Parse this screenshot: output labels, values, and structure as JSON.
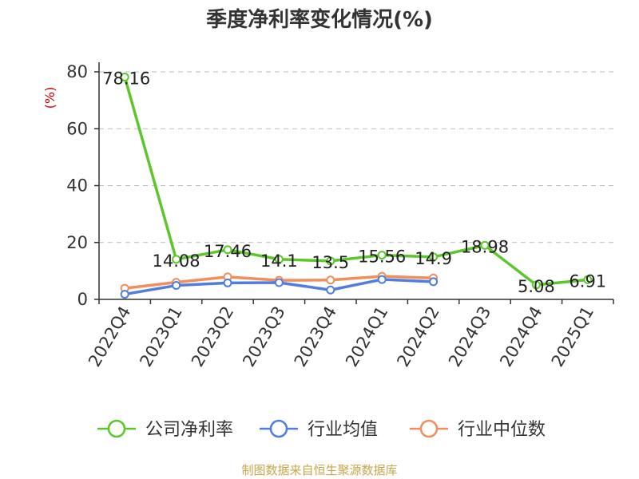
{
  "title": "季度净利率变化情况(%)",
  "source": "制图数据来自恒生聚源数据库",
  "chart_data": {
    "type": "line",
    "title": "季度净利率变化情况(%)",
    "ylabel": "(%)",
    "xlabel": "",
    "ylim": [
      0,
      80
    ],
    "yticks": [
      0,
      20,
      40,
      60,
      80
    ],
    "grid": true,
    "legend_position": "bottom",
    "categories": [
      "2022Q4",
      "2023Q1",
      "2023Q2",
      "2023Q3",
      "2023Q4",
      "2024Q1",
      "2024Q2",
      "2024Q3",
      "2024Q4",
      "2025Q1"
    ],
    "series": [
      {
        "name": "公司净利率",
        "color": "#5cc72b",
        "values": [
          78.16,
          14.08,
          17.46,
          14.1,
          13.5,
          15.56,
          14.9,
          18.98,
          5.08,
          6.91
        ],
        "labels": [
          "78.16",
          "14.08",
          "17.46",
          "14.1",
          "13.5",
          "15.56",
          "14.9",
          "18.98",
          "5.08",
          "6.91"
        ]
      },
      {
        "name": "行业均值",
        "color": "#4f7ee0",
        "values": [
          1.8,
          4.9,
          5.8,
          5.9,
          3.3,
          7.0,
          6.2,
          null,
          null,
          null
        ]
      },
      {
        "name": "行业中位数",
        "color": "#f28e5a",
        "values": [
          3.9,
          6.0,
          7.9,
          6.7,
          6.8,
          8.1,
          7.5,
          null,
          null,
          null
        ]
      }
    ]
  }
}
